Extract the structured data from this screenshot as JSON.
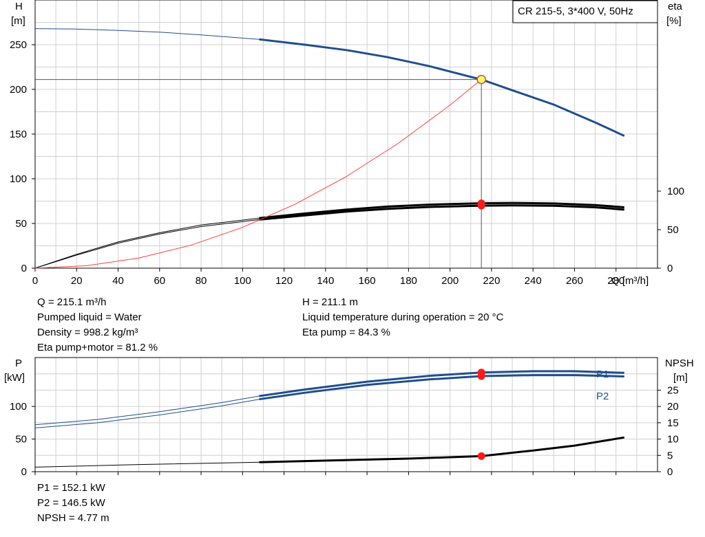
{
  "chart_data": [
    {
      "type": "line",
      "title": "CR 215-5, 3*400 V, 50Hz",
      "xlabel": "Q [m³/h]",
      "ylabel": "H",
      "ylabel_unit": "[m]",
      "y2label": "eta",
      "y2label_unit": "[%]",
      "xlim": [
        0,
        300
      ],
      "ylim": [
        0,
        300
      ],
      "x_ticks": [
        "0",
        "20",
        "40",
        "60",
        "80",
        "100",
        "120",
        "140",
        "160",
        "180",
        "200",
        "220",
        "240",
        "260",
        "280"
      ],
      "y_ticks": [
        "0",
        "50",
        "100",
        "150",
        "200",
        "250"
      ],
      "y2_ticks": [
        "0",
        "50",
        "100"
      ],
      "grid": true,
      "series": [
        {
          "role": "head",
          "color": "#1f4e8c",
          "x": [
            0,
            20,
            40,
            60,
            80,
            108,
            130,
            150,
            170,
            190,
            210,
            215.1,
            230,
            250,
            270,
            284
          ],
          "y": [
            268,
            267.5,
            266,
            264,
            261,
            256,
            250,
            244,
            236,
            226,
            214,
            211.1,
            199,
            183,
            163,
            148
          ]
        },
        {
          "role": "eta-pump",
          "color": "#000000",
          "x": [
            0,
            20,
            40,
            60,
            80,
            108,
            130,
            150,
            170,
            190,
            215.1,
            230,
            250,
            270,
            284
          ],
          "y": [
            0,
            18,
            34,
            46,
            56,
            65,
            71,
            76,
            80,
            82.5,
            84.3,
            84.6,
            84,
            82,
            79
          ]
        },
        {
          "role": "eta-pump-motor",
          "color": "#000000",
          "x": [
            0,
            20,
            40,
            60,
            80,
            108,
            130,
            150,
            170,
            190,
            215.1,
            230,
            250,
            270,
            284
          ],
          "y": [
            0,
            17,
            32.5,
            44.5,
            54,
            63,
            68.5,
            73.5,
            77,
            79.5,
            81.2,
            81.5,
            81,
            79,
            76
          ]
        },
        {
          "role": "system-curve",
          "color": "#ff3b3b",
          "x": [
            0,
            25,
            50,
            75,
            100,
            125,
            150,
            175,
            200,
            215.1
          ],
          "y": [
            0,
            2.8,
            11.4,
            25.6,
            45.6,
            71.2,
            102.5,
            139.6,
            182.4,
            211.1
          ]
        }
      ],
      "operating_point": {
        "x": 215.1,
        "y": 211.1,
        "eta": 84.3,
        "eta_pump_motor": 81.2
      }
    },
    {
      "type": "line",
      "ylabel": "P",
      "ylabel_unit": "[kW]",
      "y2label": "NPSH",
      "y2label_unit": "[m]",
      "xlim": [
        0,
        300
      ],
      "ylim": [
        0,
        175
      ],
      "y2lim": [
        0,
        35
      ],
      "y_ticks": [
        "0",
        "50",
        "100"
      ],
      "y2_ticks": [
        "0",
        "5",
        "10",
        "15",
        "20",
        "25"
      ],
      "grid": true,
      "series": [
        {
          "name": "P1",
          "color": "#1f4e8c",
          "x": [
            0,
            30,
            60,
            90,
            108,
            130,
            160,
            190,
            215.1,
            240,
            260,
            284
          ],
          "y": [
            72,
            80,
            92,
            106,
            116,
            126,
            138,
            147,
            152.1,
            154,
            154,
            151.5
          ]
        },
        {
          "name": "P2",
          "color": "#1f4e8c",
          "x": [
            0,
            30,
            60,
            90,
            108,
            130,
            160,
            190,
            215.1,
            240,
            260,
            284
          ],
          "y": [
            67,
            75,
            87,
            101,
            111,
            121,
            133,
            141.5,
            146.5,
            148,
            148,
            146
          ]
        },
        {
          "name": "NPSH",
          "color": "#000000",
          "axis": "y2",
          "x": [
            0,
            50,
            100,
            108,
            140,
            180,
            215.1,
            240,
            260,
            284
          ],
          "y": [
            1.4,
            2.2,
            2.8,
            2.9,
            3.4,
            4.0,
            4.77,
            6.5,
            8.0,
            10.5
          ]
        }
      ],
      "operating_point": {
        "x": 215.1,
        "p1": 152.1,
        "p2": 146.5,
        "npsh": 4.77
      }
    }
  ],
  "info_top_left": [
    "Q = 215.1 m³/h",
    "Pumped liquid = Water",
    "Density = 998.2 kg/m³",
    "Eta pump+motor = 81.2 %"
  ],
  "info_top_right": [
    "H = 211.1 m",
    "Liquid temperature during operation = 20 °C",
    "Eta pump = 84.3 %"
  ],
  "info_bottom": [
    "P1 = 152.1 kW",
    "P2 = 146.5 kW",
    "NPSH = 4.77 m"
  ]
}
